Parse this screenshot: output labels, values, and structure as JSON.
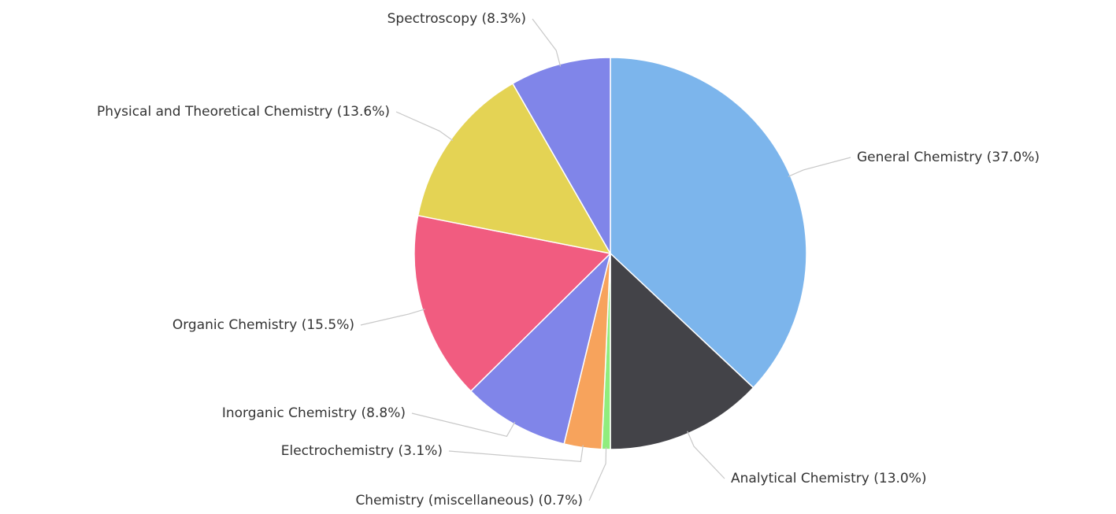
{
  "chart_data": {
    "type": "pie",
    "categories": [
      "General Chemistry (37.0%)",
      "Analytical Chemistry (13.0%)",
      "Chemistry (miscellaneous) (0.7%)",
      "Electrochemistry (3.1%)",
      "Inorganic Chemistry (8.8%)",
      "Organic Chemistry (15.5%)",
      "Physical and Theoretical Chemistry (13.6%)",
      "Spectroscopy (8.3%)"
    ],
    "values": [
      37.0,
      13.0,
      0.7,
      3.1,
      8.8,
      15.5,
      13.6,
      8.3
    ],
    "colors": [
      "#7cb5ec",
      "#434348",
      "#90ed7d",
      "#f7a35c",
      "#8085e9",
      "#f15c80",
      "#e4d354",
      "#8085e9"
    ]
  }
}
